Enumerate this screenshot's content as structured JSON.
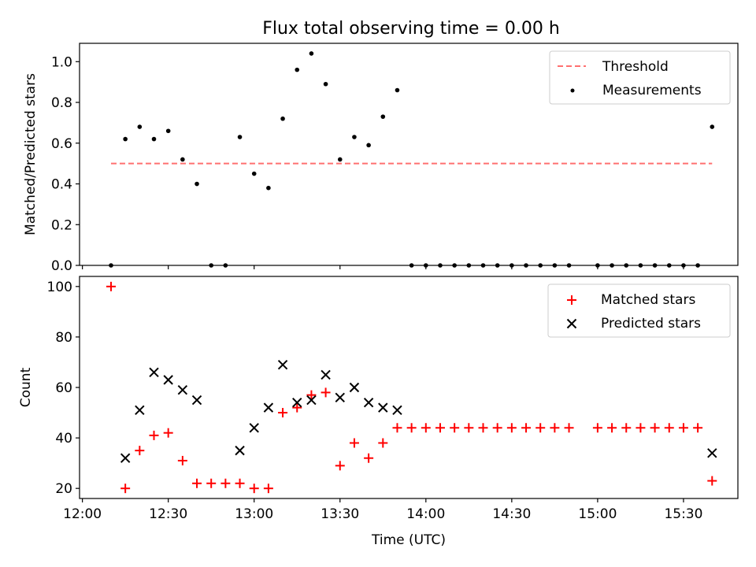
{
  "title": "Flux total observing time = 0.00 h",
  "colors": {
    "threshold": "#ff7070",
    "measurements": "#000000",
    "matched": "#ff0000",
    "predicted": "#000000"
  },
  "chart_data": [
    {
      "type": "scatter",
      "ylabel": "Matched/Predicted stars",
      "ylim": [
        0,
        1.09
      ],
      "yticks": [
        0.0,
        0.2,
        0.4,
        0.6,
        0.8,
        1.0
      ],
      "ytick_labels": [
        "0.0",
        "0.2",
        "0.4",
        "0.6",
        "0.8",
        "1.0"
      ],
      "legend_position": "top-right",
      "threshold": {
        "name": "Threshold",
        "value": 0.5,
        "x_start": "12:10",
        "x_end": "15:40"
      },
      "series": [
        {
          "name": "Measurements",
          "points": [
            [
              "12:10",
              0.0
            ],
            [
              "12:15",
              0.62
            ],
            [
              "12:20",
              0.68
            ],
            [
              "12:25",
              0.62
            ],
            [
              "12:30",
              0.66
            ],
            [
              "12:35",
              0.52
            ],
            [
              "12:40",
              0.4
            ],
            [
              "12:45",
              0.0
            ],
            [
              "12:50",
              0.0
            ],
            [
              "12:55",
              0.63
            ],
            [
              "13:00",
              0.45
            ],
            [
              "13:05",
              0.38
            ],
            [
              "13:10",
              0.72
            ],
            [
              "13:15",
              0.96
            ],
            [
              "13:20",
              1.04
            ],
            [
              "13:25",
              0.89
            ],
            [
              "13:30",
              0.52
            ],
            [
              "13:35",
              0.63
            ],
            [
              "13:40",
              0.59
            ],
            [
              "13:45",
              0.73
            ],
            [
              "13:50",
              0.86
            ],
            [
              "13:55",
              0.0
            ],
            [
              "14:00",
              0.0
            ],
            [
              "14:05",
              0.0
            ],
            [
              "14:10",
              0.0
            ],
            [
              "14:15",
              0.0
            ],
            [
              "14:20",
              0.0
            ],
            [
              "14:25",
              0.0
            ],
            [
              "14:30",
              0.0
            ],
            [
              "14:35",
              0.0
            ],
            [
              "14:40",
              0.0
            ],
            [
              "14:45",
              0.0
            ],
            [
              "14:50",
              0.0
            ],
            [
              "15:00",
              0.0
            ],
            [
              "15:05",
              0.0
            ],
            [
              "15:10",
              0.0
            ],
            [
              "15:15",
              0.0
            ],
            [
              "15:20",
              0.0
            ],
            [
              "15:25",
              0.0
            ],
            [
              "15:30",
              0.0
            ],
            [
              "15:35",
              0.0
            ],
            [
              "15:40",
              0.68
            ]
          ]
        }
      ]
    },
    {
      "type": "scatter",
      "xlabel": "Time (UTC)",
      "ylabel": "Count",
      "ylim": [
        16,
        104
      ],
      "yticks": [
        20,
        40,
        60,
        80,
        100
      ],
      "ytick_labels": [
        "20",
        "40",
        "60",
        "80",
        "100"
      ],
      "xlim": [
        "11:59",
        "15:49"
      ],
      "xticks": [
        "12:00",
        "12:30",
        "13:00",
        "13:30",
        "14:00",
        "14:30",
        "15:00",
        "15:30"
      ],
      "xtick_labels": [
        "12:00",
        "12:30",
        "13:00",
        "13:30",
        "14:00",
        "14:30",
        "15:00",
        "15:30"
      ],
      "legend_position": "top-right",
      "series": [
        {
          "name": "Matched stars",
          "marker": "plus",
          "points": [
            [
              "12:10",
              100
            ],
            [
              "12:15",
              20
            ],
            [
              "12:20",
              35
            ],
            [
              "12:25",
              41
            ],
            [
              "12:30",
              42
            ],
            [
              "12:35",
              31
            ],
            [
              "12:40",
              22
            ],
            [
              "12:45",
              22
            ],
            [
              "12:50",
              22
            ],
            [
              "12:55",
              22
            ],
            [
              "13:00",
              20
            ],
            [
              "13:05",
              20
            ],
            [
              "13:10",
              50
            ],
            [
              "13:15",
              52
            ],
            [
              "13:20",
              57
            ],
            [
              "13:25",
              58
            ],
            [
              "13:30",
              29
            ],
            [
              "13:35",
              38
            ],
            [
              "13:40",
              32
            ],
            [
              "13:45",
              38
            ],
            [
              "13:50",
              44
            ],
            [
              "13:55",
              44
            ],
            [
              "14:00",
              44
            ],
            [
              "14:05",
              44
            ],
            [
              "14:10",
              44
            ],
            [
              "14:15",
              44
            ],
            [
              "14:20",
              44
            ],
            [
              "14:25",
              44
            ],
            [
              "14:30",
              44
            ],
            [
              "14:35",
              44
            ],
            [
              "14:40",
              44
            ],
            [
              "14:45",
              44
            ],
            [
              "14:50",
              44
            ],
            [
              "15:00",
              44
            ],
            [
              "15:05",
              44
            ],
            [
              "15:10",
              44
            ],
            [
              "15:15",
              44
            ],
            [
              "15:20",
              44
            ],
            [
              "15:25",
              44
            ],
            [
              "15:30",
              44
            ],
            [
              "15:35",
              44
            ],
            [
              "15:40",
              23
            ]
          ]
        },
        {
          "name": "Predicted stars",
          "marker": "x",
          "points": [
            [
              "12:15",
              32
            ],
            [
              "12:20",
              51
            ],
            [
              "12:25",
              66
            ],
            [
              "12:30",
              63
            ],
            [
              "12:35",
              59
            ],
            [
              "12:40",
              55
            ],
            [
              "12:55",
              35
            ],
            [
              "13:00",
              44
            ],
            [
              "13:05",
              52
            ],
            [
              "13:10",
              69
            ],
            [
              "13:15",
              54
            ],
            [
              "13:20",
              55
            ],
            [
              "13:25",
              65
            ],
            [
              "13:30",
              56
            ],
            [
              "13:35",
              60
            ],
            [
              "13:40",
              54
            ],
            [
              "13:45",
              52
            ],
            [
              "13:50",
              51
            ],
            [
              "15:40",
              34
            ]
          ]
        }
      ]
    }
  ]
}
